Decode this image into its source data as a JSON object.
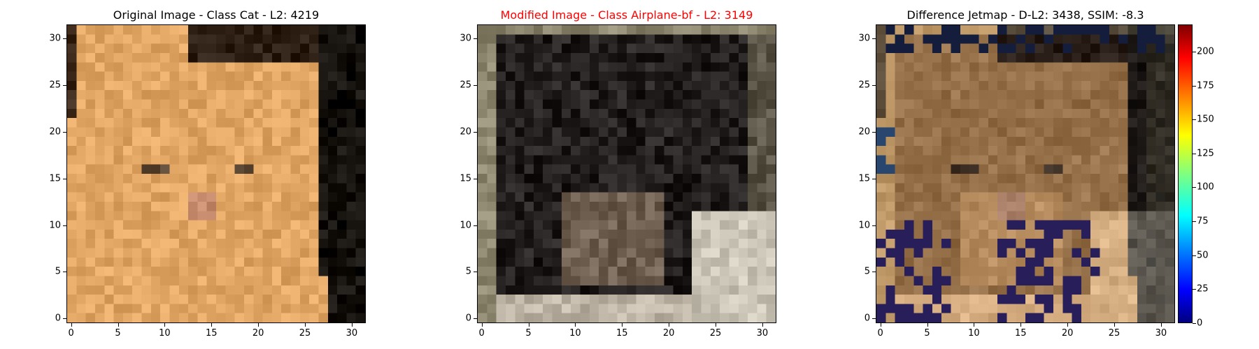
{
  "chart_data": [
    {
      "type": "heatmap",
      "title": "Original Image - Class Cat - L2: 4219",
      "title_color": "#000000",
      "xlim": [
        -0.5,
        31.5
      ],
      "ylim": [
        31.5,
        -0.5
      ],
      "x_ticks": [
        "0",
        "5",
        "10",
        "15",
        "20",
        "25",
        "30"
      ],
      "y_ticks": [
        "0",
        "5",
        "10",
        "15",
        "20",
        "25",
        "30"
      ],
      "image": "32x32 RGB: orange tabby cat face on dark background, dark upper-right corner and right edge"
    },
    {
      "type": "heatmap",
      "title": "Modified Image - Class Airplane-bf - L2: 3149",
      "title_color": "#ff0000",
      "xlim": [
        -0.5,
        31.5
      ],
      "ylim": [
        31.5,
        -0.5
      ],
      "x_ticks": [
        "0",
        "5",
        "10",
        "15",
        "20",
        "25",
        "30"
      ],
      "y_ticks": [
        "0",
        "5",
        "10",
        "15",
        "20",
        "25",
        "30"
      ],
      "image": "32x32 RGB: dark black/grey texture, grey-beige border, light grey lower-right region"
    },
    {
      "type": "heatmap",
      "title": "Difference Jetmap - D-L2: 3438, SSIM: -8.3",
      "title_color": "#000000",
      "xlim": [
        -0.5,
        31.5
      ],
      "ylim": [
        31.5,
        -0.5
      ],
      "x_ticks": [
        "0",
        "5",
        "10",
        "15",
        "20",
        "25",
        "30"
      ],
      "y_ticks": [
        "0",
        "5",
        "10",
        "15",
        "20",
        "25",
        "30"
      ],
      "colorbar": {
        "colormap": "jet",
        "range": [
          0,
          220
        ],
        "ticks": [
          "0",
          "25",
          "50",
          "75",
          "100",
          "125",
          "150",
          "175",
          "200"
        ]
      },
      "image": "32x32 RGB overlay: orange cat face with dark blue/purple speckles in lower-left and bottom-center"
    }
  ]
}
